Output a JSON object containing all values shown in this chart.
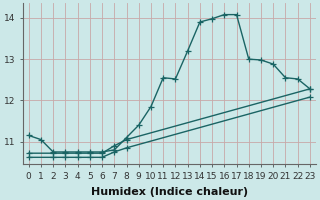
{
  "xlabel": "Humidex (Indice chaleur)",
  "xlim": [
    -0.5,
    23.5
  ],
  "ylim": [
    10.45,
    14.35
  ],
  "background_color": "#cce8e8",
  "grid_color": "#c8a8a8",
  "line_color": "#1a6464",
  "line1_x": [
    0,
    1,
    2,
    3,
    4,
    5,
    6,
    7,
    8,
    9,
    10,
    11,
    12,
    13,
    14,
    15,
    16,
    17,
    18,
    19,
    20,
    21,
    22,
    23
  ],
  "line1_y": [
    11.15,
    11.05,
    10.75,
    10.75,
    10.75,
    10.75,
    10.75,
    10.8,
    11.1,
    11.4,
    11.85,
    12.55,
    12.52,
    13.2,
    13.9,
    13.98,
    14.08,
    14.08,
    13.0,
    12.98,
    12.88,
    12.55,
    12.52,
    12.28
  ],
  "line2_x": [
    0,
    2,
    3,
    4,
    5,
    6,
    7,
    8,
    23
  ],
  "line2_y": [
    10.72,
    10.72,
    10.72,
    10.72,
    10.72,
    10.72,
    10.9,
    11.05,
    12.28
  ],
  "line3_x": [
    0,
    2,
    3,
    4,
    5,
    6,
    7,
    8,
    23
  ],
  "line3_y": [
    10.62,
    10.62,
    10.62,
    10.62,
    10.62,
    10.62,
    10.75,
    10.85,
    12.08
  ],
  "xticks": [
    0,
    1,
    2,
    3,
    4,
    5,
    6,
    7,
    8,
    9,
    10,
    11,
    12,
    13,
    14,
    15,
    16,
    17,
    18,
    19,
    20,
    21,
    22,
    23
  ],
  "yticks": [
    11,
    12,
    13,
    14
  ],
  "marker": "+",
  "markersize": 4,
  "linewidth": 1.0,
  "tick_fontsize": 6.5,
  "label_fontsize": 8
}
